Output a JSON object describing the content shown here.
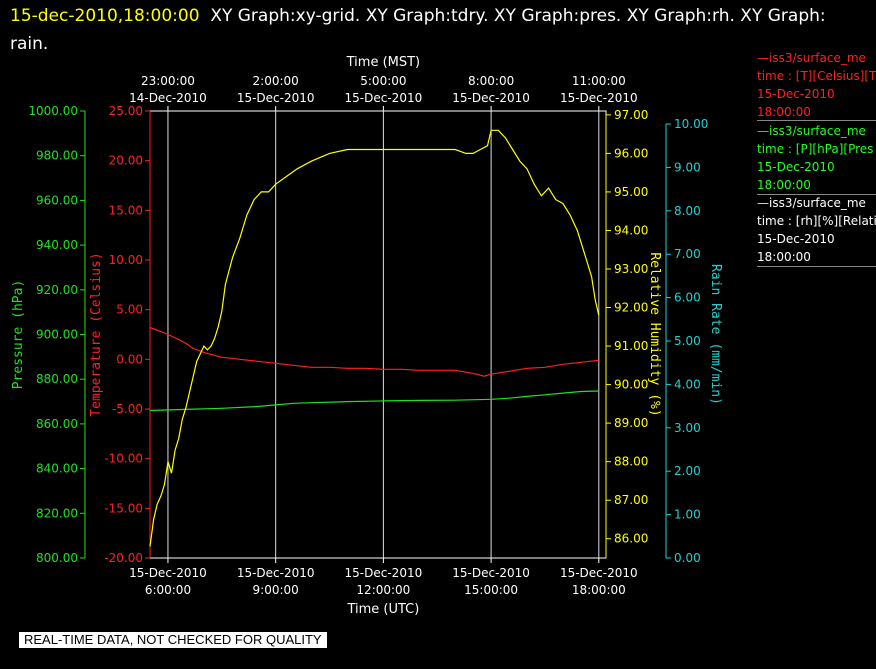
{
  "title": {
    "timestamp": "15-dec-2010,18:00:00",
    "rest": "XY Graph:xy-grid.  XY Graph:tdry.  XY Graph:pres.  XY Graph:rh.  XY Graph: rain."
  },
  "legend": [
    {
      "color": "#ff2020",
      "line1": "iss3/surface_me",
      "line2": "time : [T][Celsius][T",
      "line3": "15-Dec-2010",
      "line4": "18:00:00"
    },
    {
      "color": "#20ff20",
      "line1": "iss3/surface_me",
      "line2": "time : [P][hPa][Pres",
      "line3": "15-Dec-2010",
      "line4": "18:00:00"
    },
    {
      "color": "#ffffff",
      "line1": "iss3/surface_me",
      "line2": "time : [rh][%][Relati",
      "line3": "15-Dec-2010",
      "line4": "18:00:00"
    }
  ],
  "footer": "REAL-TIME DATA, NOT CHECKED FOR QUALITY",
  "chart_data": {
    "type": "line",
    "x_unit": "hours UTC",
    "xlim": [
      5.5,
      18.2
    ],
    "bottom_axis": {
      "label": "Time (UTC)",
      "ticks": [
        {
          "x": 6,
          "date": "15-Dec-2010",
          "time": "6:00:00"
        },
        {
          "x": 9,
          "date": "15-Dec-2010",
          "time": "9:00:00"
        },
        {
          "x": 12,
          "date": "15-Dec-2010",
          "time": "12:00:00"
        },
        {
          "x": 15,
          "date": "15-Dec-2010",
          "time": "15:00:00"
        },
        {
          "x": 18,
          "date": "15-Dec-2010",
          "time": "18:00:00"
        }
      ]
    },
    "top_axis": {
      "label": "Time (MST)",
      "ticks": [
        {
          "x": 6,
          "time": "23:00:00",
          "date": "14-Dec-2010"
        },
        {
          "x": 9,
          "time": "2:00:00",
          "date": "15-Dec-2010"
        },
        {
          "x": 12,
          "time": "5:00:00",
          "date": "15-Dec-2010"
        },
        {
          "x": 15,
          "time": "8:00:00",
          "date": "15-Dec-2010"
        },
        {
          "x": 18,
          "time": "11:00:00",
          "date": "15-Dec-2010"
        }
      ]
    },
    "y_axes": [
      {
        "id": "pres",
        "label": "Pressure (hPa)",
        "color": "#20e020",
        "min": 800,
        "max": 1000,
        "step": 20,
        "decimals": 2,
        "side": "left"
      },
      {
        "id": "temp",
        "label": "Temperature (Celsius)",
        "color": "#ff2020",
        "min": -20,
        "max": 25,
        "step": 5,
        "decimals": 2,
        "side": "left"
      },
      {
        "id": "rh",
        "label": "Relative Humidity (%)",
        "color": "#ffff00",
        "min": 85.5,
        "max": 97.1,
        "step": 1,
        "decimals": 2,
        "side": "right",
        "tick_min": 86,
        "tick_max": 97
      },
      {
        "id": "rain",
        "label": "Rain Rate (mm/min)",
        "color": "#20d0d0",
        "min": 0,
        "max": 10.3,
        "step": 1,
        "decimals": 2,
        "side": "right",
        "tick_min": 0,
        "tick_max": 10
      }
    ],
    "series": [
      {
        "axis": "temp",
        "color": "#ff2020",
        "x": [
          5.5,
          5.8,
          6.0,
          6.3,
          6.5,
          6.7,
          7.0,
          7.2,
          7.5,
          7.8,
          8.0,
          8.5,
          9.0,
          9.5,
          10.0,
          10.5,
          11.0,
          11.5,
          12.0,
          12.5,
          13.0,
          13.5,
          14.0,
          14.3,
          14.6,
          14.8,
          15.0,
          15.5,
          16.0,
          16.5,
          17.0,
          17.5,
          18.0
        ],
        "values": [
          3.2,
          2.8,
          2.5,
          2.0,
          1.6,
          1.1,
          0.7,
          0.5,
          0.2,
          0.1,
          0.0,
          -0.2,
          -0.4,
          -0.6,
          -0.8,
          -0.8,
          -0.9,
          -0.9,
          -1.0,
          -1.0,
          -1.1,
          -1.1,
          -1.1,
          -1.3,
          -1.5,
          -1.7,
          -1.5,
          -1.2,
          -0.9,
          -0.8,
          -0.5,
          -0.3,
          -0.1
        ]
      },
      {
        "axis": "pres",
        "color": "#20e020",
        "x": [
          5.5,
          6.5,
          7.5,
          8.5,
          9.0,
          9.5,
          10.0,
          11.0,
          12.0,
          13.0,
          14.0,
          15.0,
          15.5,
          16.0,
          16.5,
          17.0,
          17.5,
          18.0
        ],
        "values": [
          866.0,
          866.5,
          867.0,
          867.8,
          868.5,
          869.2,
          869.5,
          870.0,
          870.3,
          870.5,
          870.6,
          871.0,
          871.5,
          872.3,
          873.0,
          873.8,
          874.5,
          874.7
        ]
      },
      {
        "axis": "rh",
        "color": "#ffff00",
        "x": [
          5.5,
          5.6,
          5.7,
          5.8,
          5.9,
          6.0,
          6.1,
          6.2,
          6.3,
          6.4,
          6.5,
          6.6,
          6.7,
          6.8,
          6.9,
          7.0,
          7.1,
          7.2,
          7.3,
          7.4,
          7.5,
          7.6,
          7.8,
          8.0,
          8.2,
          8.4,
          8.6,
          8.8,
          9.0,
          9.3,
          9.6,
          10.0,
          10.5,
          11.0,
          11.5,
          12.0,
          12.5,
          13.0,
          13.5,
          14.0,
          14.3,
          14.5,
          14.7,
          14.9,
          15.0,
          15.2,
          15.4,
          15.6,
          15.8,
          16.0,
          16.2,
          16.4,
          16.6,
          16.8,
          17.0,
          17.2,
          17.4,
          17.6,
          17.8,
          17.9,
          18.0
        ],
        "values": [
          85.8,
          86.5,
          86.9,
          87.1,
          87.4,
          88.0,
          87.7,
          88.3,
          88.6,
          89.1,
          89.4,
          89.8,
          90.2,
          90.6,
          90.8,
          91.0,
          90.9,
          91.0,
          91.2,
          91.5,
          91.9,
          92.6,
          93.3,
          93.8,
          94.4,
          94.8,
          95.0,
          95.0,
          95.2,
          95.4,
          95.6,
          95.8,
          96.0,
          96.1,
          96.1,
          96.1,
          96.1,
          96.1,
          96.1,
          96.1,
          96.0,
          96.0,
          96.1,
          96.2,
          96.6,
          96.6,
          96.4,
          96.1,
          95.8,
          95.6,
          95.2,
          94.9,
          95.1,
          94.8,
          94.7,
          94.4,
          94.0,
          93.4,
          92.8,
          92.2,
          91.8
        ]
      }
    ]
  }
}
